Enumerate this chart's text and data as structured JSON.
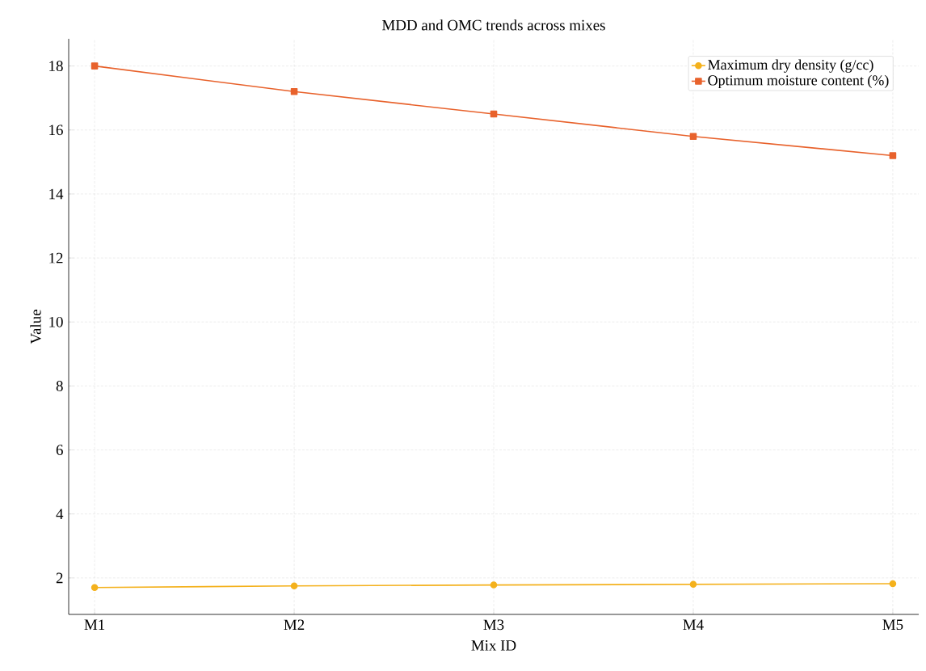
{
  "chart_data": {
    "type": "line",
    "title": "MDD and OMC trends across mixes",
    "xlabel": "Mix ID",
    "ylabel": "Value",
    "categories": [
      "M1",
      "M2",
      "M3",
      "M4",
      "M5"
    ],
    "series": [
      {
        "name": "Maximum dry density (g/cc)",
        "color": "#f4b11c",
        "marker": "circle",
        "values": [
          1.7,
          1.75,
          1.78,
          1.8,
          1.82
        ]
      },
      {
        "name": "Optimum moisture content (%)",
        "color": "#e8622c",
        "marker": "square",
        "values": [
          18.0,
          17.2,
          16.5,
          15.8,
          15.2
        ]
      }
    ],
    "ylim": [
      0.86,
      18.85
    ],
    "yticks": [
      2,
      4,
      6,
      8,
      10,
      12,
      14,
      16,
      18
    ],
    "grid": true,
    "legend": "top right",
    "line_style": "solid"
  }
}
